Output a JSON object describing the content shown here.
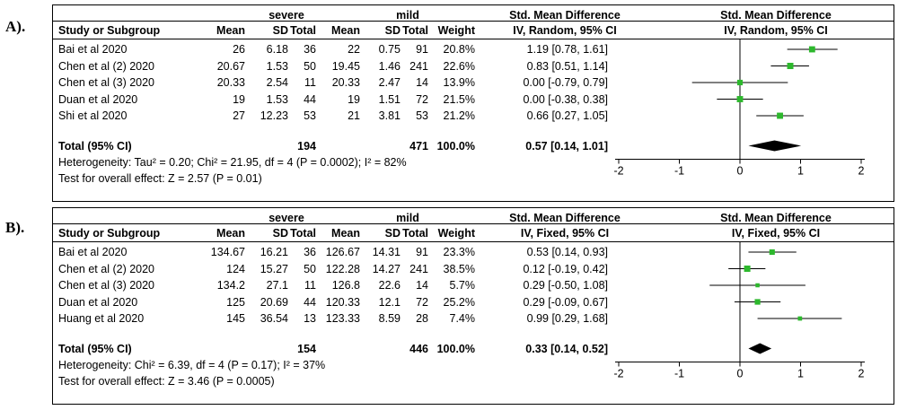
{
  "headers": {
    "group1": "severe",
    "group2": "mild",
    "study": "Study or Subgroup",
    "mean": "Mean",
    "sd": "SD",
    "total": "Total",
    "weight": "Weight",
    "smd": "Std. Mean Difference"
  },
  "colors": {
    "square": "#2db82d",
    "diamond": "#000000",
    "line": "#000000"
  },
  "chart_data": [
    {
      "type": "forest",
      "panel_label": "A).",
      "method": "IV, Random, 95% CI",
      "xlim": [
        -2,
        2
      ],
      "ticks": [
        "-2",
        "-1",
        "0",
        "1",
        "2"
      ],
      "rows": [
        {
          "study": "Bai et al 2020",
          "m1": "26",
          "sd1": "6.18",
          "n1": "36",
          "m2": "22",
          "sd2": "0.75",
          "n2": "91",
          "weight": "20.8%",
          "ci_text": "1.19 [0.78, 1.61]",
          "smd": 1.19,
          "lo": 0.78,
          "hi": 1.61,
          "w": 20.8
        },
        {
          "study": "Chen et al (2) 2020",
          "m1": "20.67",
          "sd1": "1.53",
          "n1": "50",
          "m2": "19.45",
          "sd2": "1.46",
          "n2": "241",
          "weight": "22.6%",
          "ci_text": "0.83 [0.51, 1.14]",
          "smd": 0.83,
          "lo": 0.51,
          "hi": 1.14,
          "w": 22.6
        },
        {
          "study": "Chen et al (3) 2020",
          "m1": "20.33",
          "sd1": "2.54",
          "n1": "11",
          "m2": "20.33",
          "sd2": "2.47",
          "n2": "14",
          "weight": "13.9%",
          "ci_text": "0.00 [-0.79, 0.79]",
          "smd": 0.0,
          "lo": -0.79,
          "hi": 0.79,
          "w": 13.9
        },
        {
          "study": "Duan et al 2020",
          "m1": "19",
          "sd1": "1.53",
          "n1": "44",
          "m2": "19",
          "sd2": "1.51",
          "n2": "72",
          "weight": "21.5%",
          "ci_text": "0.00 [-0.38, 0.38]",
          "smd": 0.0,
          "lo": -0.38,
          "hi": 0.38,
          "w": 21.5
        },
        {
          "study": "Shi et al 2020",
          "m1": "27",
          "sd1": "12.23",
          "n1": "53",
          "m2": "21",
          "sd2": "3.81",
          "n2": "53",
          "weight": "21.2%",
          "ci_text": "0.66 [0.27, 1.05]",
          "smd": 0.66,
          "lo": 0.27,
          "hi": 1.05,
          "w": 21.2
        }
      ],
      "total": {
        "label": "Total (95% CI)",
        "n1": "194",
        "n2": "471",
        "weight": "100.0%",
        "ci_text": "0.57 [0.14, 1.01]",
        "smd": 0.57,
        "lo": 0.14,
        "hi": 1.01
      },
      "heterogeneity": "Heterogeneity: Tau² = 0.20; Chi² = 21.95, df = 4 (P = 0.0002); I² = 82%",
      "overall": "Test for overall effect: Z = 2.57 (P = 0.01)"
    },
    {
      "type": "forest",
      "panel_label": "B).",
      "method": "IV, Fixed, 95% CI",
      "xlim": [
        -2,
        2
      ],
      "ticks": [
        "-2",
        "-1",
        "0",
        "1",
        "2"
      ],
      "rows": [
        {
          "study": "Bai et al 2020",
          "m1": "134.67",
          "sd1": "16.21",
          "n1": "36",
          "m2": "126.67",
          "sd2": "14.31",
          "n2": "91",
          "weight": "23.3%",
          "ci_text": "0.53 [0.14, 0.93]",
          "smd": 0.53,
          "lo": 0.14,
          "hi": 0.93,
          "w": 23.3
        },
        {
          "study": "Chen et al (2) 2020",
          "m1": "124",
          "sd1": "15.27",
          "n1": "50",
          "m2": "122.28",
          "sd2": "14.27",
          "n2": "241",
          "weight": "38.5%",
          "ci_text": "0.12 [-0.19, 0.42]",
          "smd": 0.12,
          "lo": -0.19,
          "hi": 0.42,
          "w": 38.5
        },
        {
          "study": "Chen et al (3) 2020",
          "m1": "134.2",
          "sd1": "27.1",
          "n1": "11",
          "m2": "126.8",
          "sd2": "22.6",
          "n2": "14",
          "weight": "5.7%",
          "ci_text": "0.29 [-0.50, 1.08]",
          "smd": 0.29,
          "lo": -0.5,
          "hi": 1.08,
          "w": 5.7
        },
        {
          "study": "Duan et al 2020",
          "m1": "125",
          "sd1": "20.69",
          "n1": "44",
          "m2": "120.33",
          "sd2": "12.1",
          "n2": "72",
          "weight": "25.2%",
          "ci_text": "0.29 [-0.09, 0.67]",
          "smd": 0.29,
          "lo": -0.09,
          "hi": 0.67,
          "w": 25.2
        },
        {
          "study": "Huang et al 2020",
          "m1": "145",
          "sd1": "36.54",
          "n1": "13",
          "m2": "123.33",
          "sd2": "8.59",
          "n2": "28",
          "weight": "7.4%",
          "ci_text": "0.99 [0.29, 1.68]",
          "smd": 0.99,
          "lo": 0.29,
          "hi": 1.68,
          "w": 7.4
        }
      ],
      "total": {
        "label": "Total (95% CI)",
        "n1": "154",
        "n2": "446",
        "weight": "100.0%",
        "ci_text": "0.33 [0.14, 0.52]",
        "smd": 0.33,
        "lo": 0.14,
        "hi": 0.52
      },
      "heterogeneity": "Heterogeneity: Chi² = 6.39, df = 4 (P = 0.17); I² = 37%",
      "overall": "Test for overall effect: Z = 3.46 (P = 0.0005)"
    }
  ]
}
